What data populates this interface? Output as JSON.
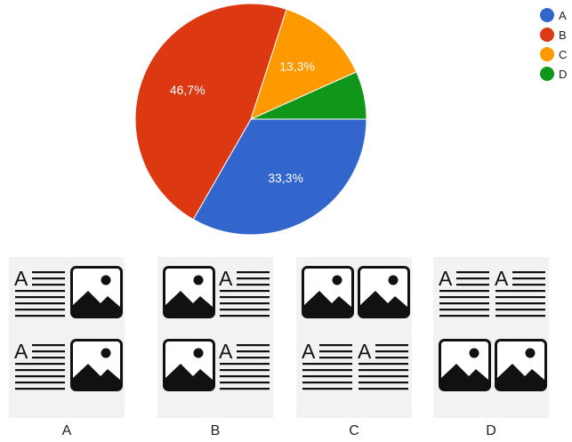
{
  "chart_data": {
    "type": "pie",
    "slices": [
      {
        "label": "A",
        "value": 33.3,
        "display": "33,3%",
        "color": "#3366cc"
      },
      {
        "label": "B",
        "value": 46.7,
        "display": "46,7%",
        "color": "#dc3912"
      },
      {
        "label": "C",
        "value": 13.3,
        "display": "13,3%",
        "color": "#ff9900"
      },
      {
        "label": "D",
        "value": 6.7,
        "display": "",
        "color": "#109618"
      }
    ],
    "legend_position": "top-right"
  },
  "layouts": [
    {
      "label": "A",
      "rows": [
        [
          "text",
          "image"
        ],
        [
          "text",
          "image"
        ]
      ]
    },
    {
      "label": "B",
      "rows": [
        [
          "image",
          "text"
        ],
        [
          "image",
          "text"
        ]
      ]
    },
    {
      "label": "C",
      "rows": [
        [
          "image",
          "image"
        ],
        [
          "text",
          "text"
        ]
      ]
    },
    {
      "label": "D",
      "rows": [
        [
          "text",
          "text"
        ],
        [
          "image",
          "image"
        ]
      ]
    }
  ]
}
